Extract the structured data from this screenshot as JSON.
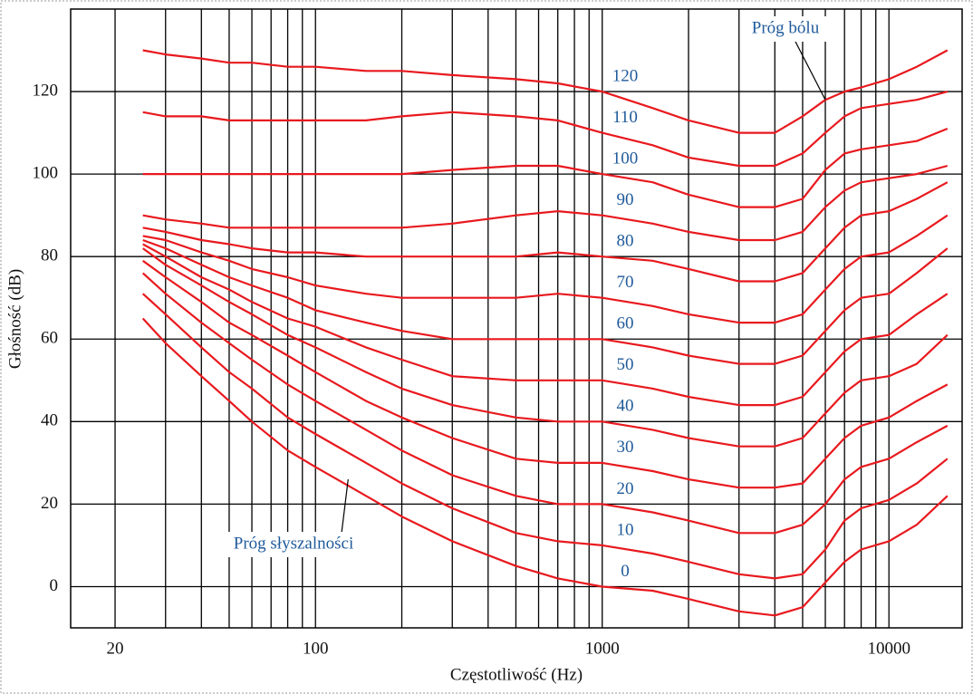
{
  "chart_data": {
    "type": "line",
    "x_label": "Częstotliwość (Hz)",
    "y_label": "Głośność (dB)",
    "log_x": true,
    "grid": true,
    "xlim": [
      14,
      18000
    ],
    "ylim": [
      -10,
      140
    ],
    "xticks": [
      20,
      100,
      1000,
      10000
    ],
    "xminor": [
      30,
      40,
      50,
      60,
      70,
      80,
      90,
      200,
      300,
      400,
      500,
      600,
      700,
      800,
      900,
      2000,
      3000,
      4000,
      5000,
      6000,
      7000,
      8000,
      9000
    ],
    "yticks": [
      0,
      20,
      40,
      60,
      80,
      100,
      120
    ],
    "x": [
      25,
      30,
      40,
      50,
      60,
      80,
      100,
      150,
      200,
      300,
      500,
      700,
      1000,
      1500,
      2000,
      3000,
      4000,
      5000,
      6000,
      7000,
      8000,
      10000,
      12500,
      16000
    ],
    "series": [
      {
        "name": "0",
        "color": "#e8191e",
        "values": [
          65,
          59,
          51,
          45,
          40,
          33,
          29,
          22,
          17,
          11,
          5,
          2,
          0,
          -1,
          -3,
          -6,
          -7,
          -5,
          1,
          6,
          9,
          11,
          15,
          22
        ]
      },
      {
        "name": "10",
        "color": "#e8191e",
        "values": [
          71,
          66,
          58,
          52,
          48,
          41,
          37,
          30,
          25,
          19,
          13,
          11,
          10,
          8,
          6,
          3,
          2,
          3,
          9,
          16,
          19,
          21,
          25,
          31
        ]
      },
      {
        "name": "20",
        "color": "#e8191e",
        "values": [
          76,
          71,
          64,
          59,
          55,
          49,
          45,
          38,
          33,
          27,
          22,
          20,
          20,
          18,
          16,
          13,
          13,
          15,
          20,
          26,
          29,
          31,
          35,
          39
        ]
      },
      {
        "name": "30",
        "color": "#e8191e",
        "values": [
          79,
          75,
          69,
          64,
          61,
          56,
          52,
          45,
          41,
          36,
          31,
          30,
          30,
          28,
          26,
          24,
          24,
          25,
          31,
          36,
          39,
          41,
          45,
          49
        ]
      },
      {
        "name": "40",
        "color": "#e8191e",
        "values": [
          82,
          78,
          73,
          69,
          66,
          61,
          58,
          52,
          48,
          44,
          41,
          40,
          40,
          38,
          36,
          34,
          34,
          36,
          42,
          47,
          50,
          51,
          54,
          61
        ]
      },
      {
        "name": "50",
        "color": "#e8191e",
        "values": [
          83,
          80,
          75,
          72,
          69,
          65,
          63,
          58,
          55,
          51,
          50,
          50,
          50,
          48,
          46,
          44,
          44,
          46,
          52,
          57,
          60,
          61,
          66,
          71
        ]
      },
      {
        "name": "60",
        "color": "#e8191e",
        "values": [
          84,
          82,
          78,
          75,
          73,
          70,
          67,
          64,
          62,
          60,
          60,
          60,
          60,
          58,
          56,
          54,
          54,
          56,
          62,
          67,
          70,
          71,
          76,
          82
        ]
      },
      {
        "name": "70",
        "color": "#e8191e",
        "values": [
          85,
          84,
          81,
          79,
          77,
          75,
          73,
          71,
          70,
          70,
          70,
          71,
          70,
          68,
          66,
          64,
          64,
          66,
          72,
          77,
          80,
          81,
          85,
          90
        ]
      },
      {
        "name": "80",
        "color": "#e8191e",
        "values": [
          87,
          86,
          84,
          83,
          82,
          81,
          81,
          80,
          80,
          80,
          80,
          81,
          80,
          79,
          77,
          74,
          74,
          76,
          82,
          87,
          90,
          91,
          94,
          98
        ]
      },
      {
        "name": "90",
        "color": "#e8191e",
        "values": [
          90,
          89,
          88,
          87,
          87,
          87,
          87,
          87,
          87,
          88,
          90,
          91,
          90,
          88,
          86,
          84,
          84,
          86,
          92,
          96,
          98,
          99,
          100,
          102
        ]
      },
      {
        "name": "100",
        "color": "#e8191e",
        "values": [
          100,
          100,
          100,
          100,
          100,
          100,
          100,
          100,
          100,
          101,
          102,
          102,
          100,
          98,
          95,
          92,
          92,
          94,
          101,
          105,
          106,
          107,
          108,
          111
        ]
      },
      {
        "name": "110",
        "color": "#e8191e",
        "values": [
          115,
          114,
          114,
          113,
          113,
          113,
          113,
          113,
          114,
          115,
          114,
          113,
          110,
          107,
          104,
          102,
          102,
          105,
          110,
          114,
          116,
          117,
          118,
          120
        ]
      },
      {
        "name": "120",
        "color": "#e8191e",
        "values": [
          130,
          129,
          128,
          127,
          127,
          126,
          126,
          125,
          125,
          124,
          123,
          122,
          120,
          116,
          113,
          110,
          110,
          114,
          118,
          120,
          121,
          123,
          126,
          130
        ]
      }
    ],
    "annotations": [
      {
        "text": "Próg bólu",
        "x": 6000,
        "y": 118
      },
      {
        "text": "Próg słyszalności",
        "x": 130,
        "y": 26
      }
    ]
  }
}
